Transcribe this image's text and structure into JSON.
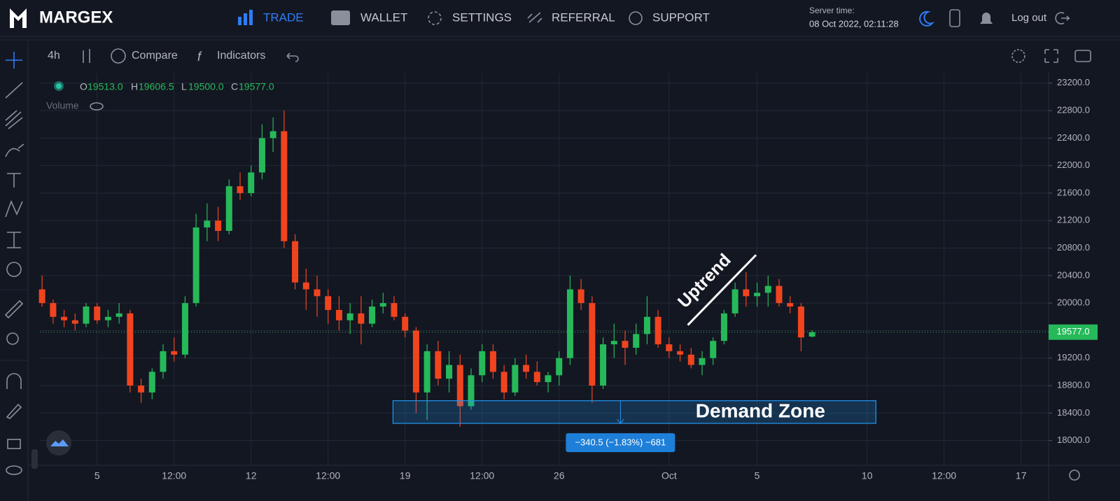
{
  "header": {
    "brand": "MARGEX",
    "nav": [
      "TRADE",
      "WALLET",
      "SETTINGS",
      "REFERRAL",
      "SUPPORT"
    ],
    "server_time_label": "Server time:",
    "server_time": "08 Oct 2022, 02:11:28",
    "logout": "Log out"
  },
  "toolbar": {
    "interval": "4h",
    "compare": "Compare",
    "indicators": "Indicators"
  },
  "legend": {
    "open_label": "O",
    "open": "19513.0",
    "high_label": "H",
    "high": "19606.5",
    "low_label": "L",
    "low": "19500.0",
    "close_label": "C",
    "close": "19577.0",
    "volume": "Volume"
  },
  "chart_data": {
    "type": "candlestick",
    "up_color": "#26b95a",
    "down_color": "#f0441f",
    "grid": true,
    "open": [
      20200,
      20000,
      19800,
      19750,
      19700,
      19950,
      19750,
      19800,
      19850,
      18800,
      18700,
      19000,
      19300,
      19250,
      20000,
      21100,
      21200,
      21050,
      21700,
      21600,
      21900,
      22400,
      22500,
      20900,
      20300,
      20200,
      20100,
      19900,
      19750,
      19850,
      19700,
      19950,
      20000,
      19800,
      19600,
      18700,
      19300,
      18900,
      19100,
      18500,
      18950,
      19300,
      19000,
      18700,
      19100,
      19000,
      18850,
      18950,
      19200,
      20200,
      20000,
      18800,
      19400,
      19450,
      19350,
      19550,
      19800,
      19400,
      19300,
      19250,
      19100,
      19200,
      19450,
      19850,
      20200,
      20100,
      20150,
      20250,
      20000,
      19950,
      19513
    ],
    "high": [
      20400,
      20050,
      19900,
      19850,
      20000,
      20000,
      19900,
      20000,
      19900,
      18900,
      19050,
      19400,
      19500,
      20100,
      21300,
      21450,
      21400,
      21800,
      21900,
      22000,
      22600,
      22700,
      22800,
      21000,
      20500,
      20400,
      20200,
      20100,
      20000,
      20100,
      20050,
      20150,
      20100,
      19850,
      19650,
      19400,
      19450,
      19300,
      19250,
      19050,
      19400,
      19400,
      19100,
      19200,
      19250,
      19150,
      19000,
      19300,
      20400,
      20350,
      20100,
      19500,
      19700,
      19600,
      19700,
      20100,
      19900,
      19500,
      19400,
      19350,
      19300,
      19500,
      19900,
      20300,
      20450,
      20300,
      20400,
      20350,
      20100,
      20000,
      19606.5
    ],
    "low": [
      19950,
      19700,
      19650,
      19600,
      19650,
      19700,
      19650,
      19700,
      18700,
      18550,
      18600,
      18900,
      19150,
      19200,
      19950,
      20900,
      20900,
      21000,
      21500,
      21550,
      21800,
      22200,
      20800,
      20200,
      19900,
      19800,
      19700,
      19600,
      19550,
      19400,
      19650,
      19850,
      19750,
      19500,
      18400,
      18300,
      18800,
      18700,
      18200,
      18450,
      18850,
      18900,
      18600,
      18650,
      18900,
      18800,
      18700,
      18800,
      19100,
      19900,
      18550,
      18750,
      19200,
      19100,
      19250,
      19400,
      19350,
      19200,
      19150,
      19050,
      18950,
      19100,
      19400,
      19800,
      19950,
      19950,
      19950,
      19950,
      19850,
      19300,
      19500
    ],
    "close": [
      20000,
      19800,
      19750,
      19700,
      19950,
      19750,
      19800,
      19850,
      18800,
      18700,
      19000,
      19300,
      19250,
      20000,
      21100,
      21200,
      21050,
      21700,
      21600,
      21900,
      22400,
      22500,
      20900,
      20300,
      20200,
      20100,
      19900,
      19750,
      19850,
      19700,
      19950,
      20000,
      19800,
      19600,
      18700,
      19300,
      18900,
      19100,
      18500,
      18950,
      19300,
      19000,
      18700,
      19100,
      19000,
      18850,
      18950,
      19200,
      20200,
      20000,
      18800,
      19400,
      19450,
      19350,
      19550,
      19800,
      19400,
      19300,
      19250,
      19100,
      19200,
      19450,
      19850,
      20200,
      20100,
      20150,
      20250,
      20000,
      19950,
      19500,
      19577
    ],
    "xlim": [
      -0.2,
      91.5
    ],
    "xticks": [
      {
        "value": 5,
        "label": "5"
      },
      {
        "value": 12,
        "label": "12:00"
      },
      {
        "value": 19,
        "label": "12"
      },
      {
        "value": 26,
        "label": "12:00"
      },
      {
        "value": 33,
        "label": "19"
      },
      {
        "value": 40,
        "label": "12:00"
      },
      {
        "value": 47,
        "label": "26"
      },
      {
        "value": 57,
        "label": "Oct"
      },
      {
        "value": 65,
        "label": "5"
      },
      {
        "value": 75,
        "label": "10"
      },
      {
        "value": 82,
        "label": "12:00"
      },
      {
        "value": 89,
        "label": "17"
      }
    ],
    "ylim": [
      17640,
      23340
    ],
    "yticks": [
      {
        "value": 18000,
        "label": "18000.0"
      },
      {
        "value": 18400,
        "label": "18400.0"
      },
      {
        "value": 18800,
        "label": "18800.0"
      },
      {
        "value": 19200,
        "label": "19200.0"
      },
      {
        "value": 19600,
        "label": "19600.0"
      },
      {
        "value": 20000,
        "label": "20000.0"
      },
      {
        "value": 20400,
        "label": "20400.0"
      },
      {
        "value": 20800,
        "label": "20800.0"
      },
      {
        "value": 21200,
        "label": "21200.0"
      },
      {
        "value": 21600,
        "label": "21600.0"
      },
      {
        "value": 22000,
        "label": "22000.0"
      },
      {
        "value": 22400,
        "label": "22400.0"
      },
      {
        "value": 22800,
        "label": "22800.0"
      },
      {
        "value": 23200,
        "label": "23200.0"
      }
    ],
    "last_price": {
      "value": 19577,
      "label": "19577.0"
    },
    "annotations": [
      {
        "type": "zone",
        "label": "Demand Zone",
        "x": [
          31.9,
          75.8
        ],
        "y": [
          18250,
          18580
        ],
        "measure": "−340.5 (−1.83%) −681"
      },
      {
        "type": "trendline",
        "label": "Uptrend",
        "x": [
          58.7,
          64.9
        ],
        "y": [
          19680,
          20700
        ]
      }
    ]
  }
}
